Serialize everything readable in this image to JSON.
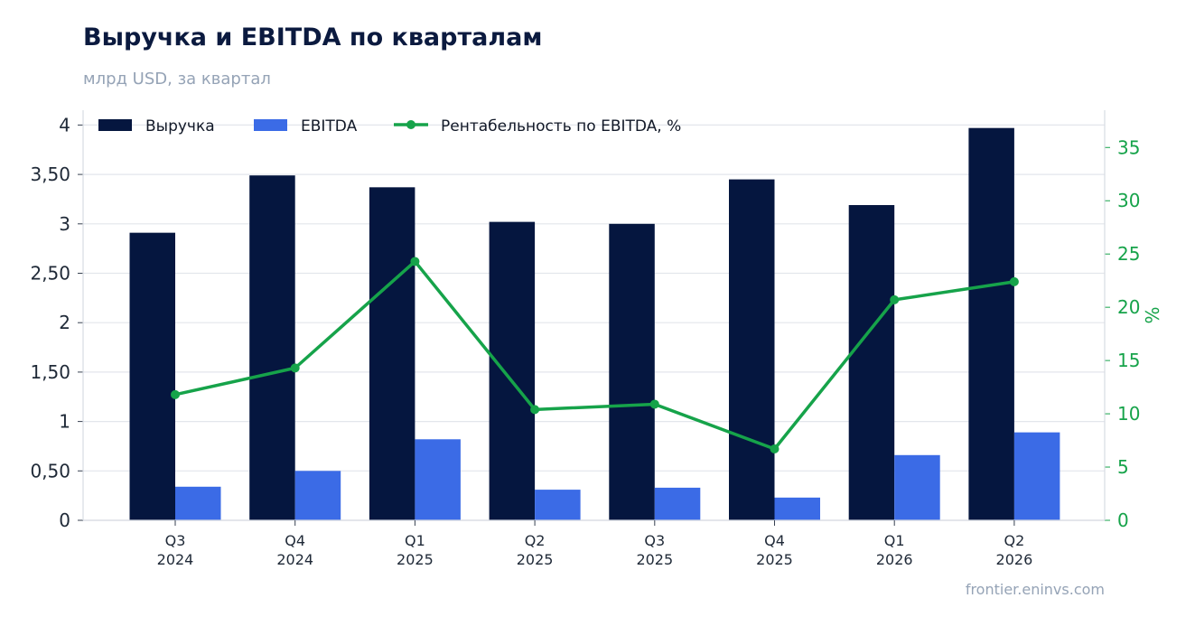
{
  "header": {
    "title": "Выручка и EBITDA по кварталам",
    "subtitle": "млрд USD, за квартал"
  },
  "footer": {
    "source": "frontier.eninvs.com"
  },
  "colors": {
    "revenue": "#05163f",
    "ebitda": "#3b6be6",
    "margin": "#16a34a",
    "grid": "#e3e6ec"
  },
  "chart_data": {
    "type": "bar",
    "categories": [
      [
        "Q3",
        "2024"
      ],
      [
        "Q4",
        "2024"
      ],
      [
        "Q1",
        "2025"
      ],
      [
        "Q2",
        "2025"
      ],
      [
        "Q3",
        "2025"
      ],
      [
        "Q4",
        "2025"
      ],
      [
        "Q1",
        "2026"
      ],
      [
        "Q2",
        "2026"
      ]
    ],
    "series": [
      {
        "name": "Выручка",
        "type": "bar",
        "axis": "left",
        "values": [
          2.91,
          3.49,
          3.37,
          3.02,
          3.0,
          3.45,
          3.19,
          3.97
        ]
      },
      {
        "name": "EBITDA",
        "type": "bar",
        "axis": "left",
        "values": [
          0.34,
          0.5,
          0.82,
          0.31,
          0.33,
          0.23,
          0.66,
          0.89
        ]
      },
      {
        "name": "Рентабельность по EBITDA, %",
        "type": "line",
        "axis": "right",
        "values": [
          11.8,
          14.3,
          24.3,
          10.4,
          10.9,
          6.7,
          20.7,
          22.4
        ]
      }
    ],
    "y_left": {
      "ylim": [
        0,
        4.15
      ],
      "ticks": [
        0,
        0.5,
        1,
        1.5,
        2,
        2.5,
        3,
        3.5,
        4
      ],
      "tick_labels": [
        "0",
        "0,50",
        "1",
        "1,50",
        "2",
        "2,50",
        "3",
        "3,50",
        "4"
      ]
    },
    "y_right": {
      "label": "%",
      "ylim": [
        0,
        38.5
      ],
      "ticks": [
        0,
        5,
        10,
        15,
        20,
        25,
        30,
        35
      ],
      "tick_labels": [
        "0",
        "5",
        "10",
        "15",
        "20",
        "25",
        "30",
        "35"
      ]
    },
    "grid": true,
    "legend_position": "top-left"
  }
}
